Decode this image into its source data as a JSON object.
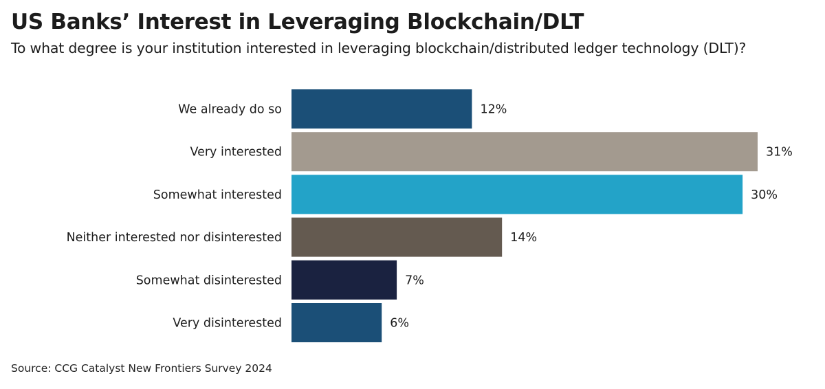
{
  "title": "US Banks’ Interest in Leveraging Blockchain/DLT",
  "subtitle": "To what degree is your institution interested in leveraging blockchain/distributed ledger technology (DLT)?",
  "source": "Source: CCG Catalyst New Frontiers Survey 2024",
  "chart_data": {
    "type": "bar",
    "orientation": "horizontal",
    "title": "US Banks’ Interest in Leveraging Blockchain/DLT",
    "subtitle": "To what degree is your institution interested in leveraging blockchain/distributed ledger technology (DLT)?",
    "xlabel": "",
    "ylabel": "",
    "categories": [
      "We already do so",
      "Very interested",
      "Somewhat interested",
      "Neither interested nor disinterested",
      "Somewhat disinterested",
      "Very disinterested"
    ],
    "values": [
      12,
      31,
      30,
      14,
      7,
      6
    ],
    "value_labels": [
      "12%",
      "31%",
      "30%",
      "14%",
      "7%",
      "6%"
    ],
    "colors": [
      "#1b4f77",
      "#a39a8f",
      "#23a3c8",
      "#645a50",
      "#1a2240",
      "#1b4f77"
    ],
    "xlim": [
      0,
      31
    ],
    "grid": false,
    "legend": "none"
  }
}
